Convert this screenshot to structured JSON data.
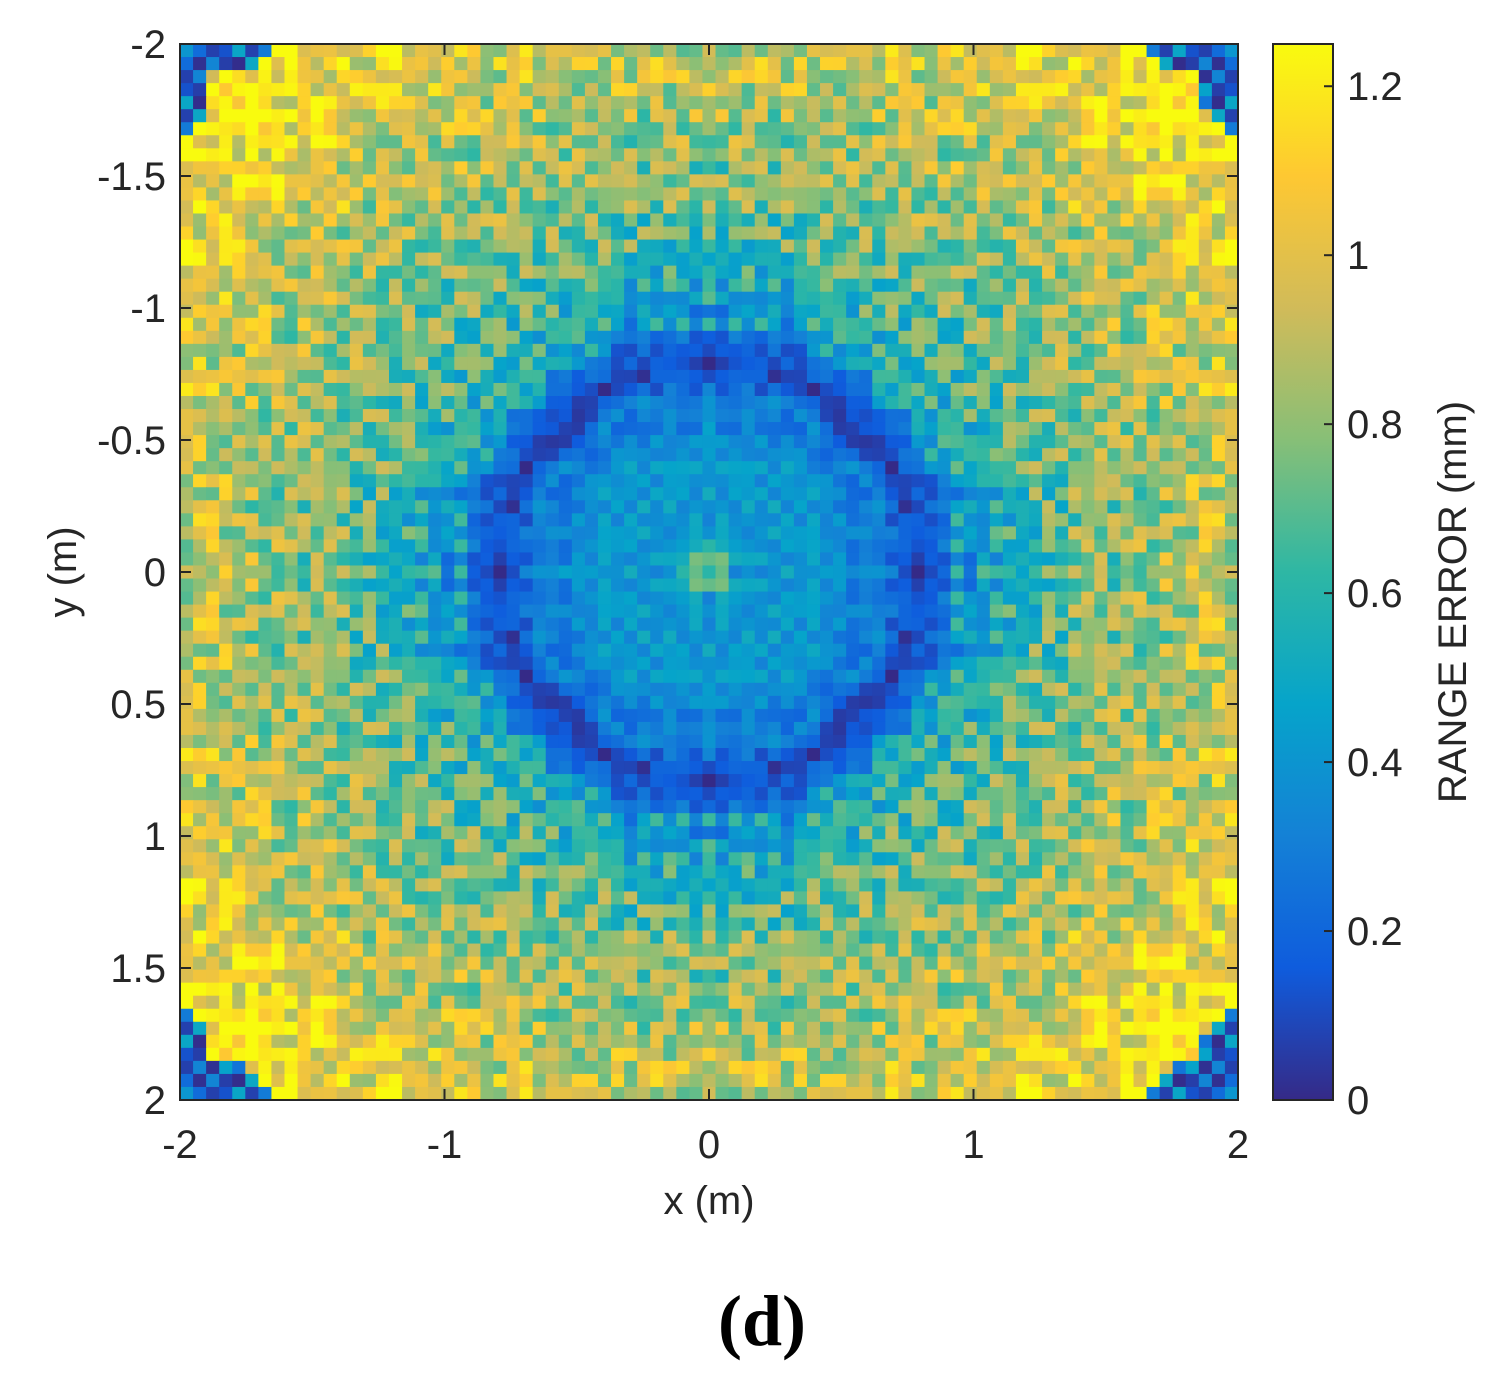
{
  "panel_label": "(d)",
  "chart_data": {
    "type": "heatmap",
    "title": "",
    "xlabel": "x (m)",
    "ylabel": "y (m)",
    "xlim": [
      -2,
      2
    ],
    "ylim": [
      -2,
      2
    ],
    "y_direction": "reversed",
    "x_ticks": [
      -2,
      -1,
      0,
      1,
      2
    ],
    "x_tick_labels": [
      "-2",
      "-1",
      "0",
      "1",
      "2"
    ],
    "y_ticks": [
      -2,
      -1.5,
      -1,
      -0.5,
      0,
      0.5,
      1,
      1.5,
      2
    ],
    "y_tick_labels": [
      "-2",
      "-1.5",
      "-1",
      "-0.5",
      "0",
      "0.5",
      "1",
      "1.5",
      "2"
    ],
    "grid_size": [
      81,
      81
    ],
    "cell_size_m": 0.05,
    "value_approximation": "Range error (mm) per cell over x,y in [-2,2] m; ~0.7 at centre, dark ring (~0.05) at radius ~0.8 m, rising to ~1.0-1.2 mm near the four corners with very low values (~0.2) at the extreme corners; cell-to-cell noise amplitude ~0.25 mm.",
    "colorbar": {
      "label": "RANGE ERROR (mm)",
      "colormap": "parula",
      "clim": [
        0,
        1.25
      ],
      "ticks": [
        0,
        0.2,
        0.4,
        0.6,
        0.8,
        1,
        1.2
      ],
      "tick_labels": [
        "0",
        "0.2",
        "0.4",
        "0.6",
        "0.8",
        "1",
        "1.2"
      ],
      "position": "right"
    },
    "colors": {
      "parula": [
        "#352a87",
        "#0f5cdd",
        "#1481d6",
        "#06a4ca",
        "#2eb7a4",
        "#87bf77",
        "#d1bb59",
        "#fec832",
        "#f9fb0e"
      ],
      "axis": "#262626"
    }
  }
}
